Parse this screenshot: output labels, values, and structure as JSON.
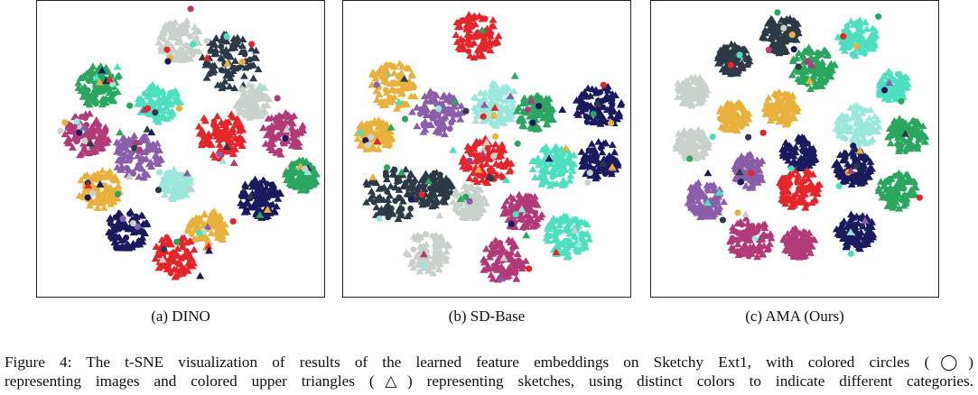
{
  "panels": [
    {
      "id": "a",
      "caption": "(a) DINO"
    },
    {
      "id": "b",
      "caption": "(b) SD-Base"
    },
    {
      "id": "c",
      "caption": "(c) AMA (Ours)"
    }
  ],
  "figure_caption": {
    "line1": "Figure 4: The t-SNE visualization of results of the learned feature embeddings on Sketchy Ext1, with colored circles (◯)",
    "line2": "representing images and colored upper triangles (△) representing sketches, using distinct colors to indicate different categories."
  },
  "colors": {
    "navy": "#1b1a5e",
    "dark": "#2c3a47",
    "red": "#e4262c",
    "teal": "#4de0c0",
    "lightteal": "#9ae8dc",
    "green": "#2aa660",
    "purple": "#8a5ea8",
    "magenta": "#b23a78",
    "gold": "#e8b13c",
    "gray": "#c9d1cb"
  },
  "chart_data": [
    {
      "type": "scatter",
      "title": "(a) DINO",
      "clusters": [
        {
          "color": "gray",
          "cx": 160,
          "cy": 45,
          "r": 25
        },
        {
          "color": "dark",
          "cx": 215,
          "cy": 68,
          "r": 33
        },
        {
          "color": "green",
          "cx": 70,
          "cy": 95,
          "r": 25
        },
        {
          "color": "teal",
          "cx": 136,
          "cy": 115,
          "r": 24
        },
        {
          "color": "magenta",
          "cx": 55,
          "cy": 150,
          "r": 26
        },
        {
          "color": "purple",
          "cx": 112,
          "cy": 172,
          "r": 28
        },
        {
          "color": "red",
          "cx": 205,
          "cy": 150,
          "r": 28
        },
        {
          "color": "magenta",
          "cx": 275,
          "cy": 148,
          "r": 25
        },
        {
          "color": "gray",
          "cx": 240,
          "cy": 112,
          "r": 20
        },
        {
          "color": "lightteal",
          "cx": 155,
          "cy": 205,
          "r": 18
        },
        {
          "color": "gold",
          "cx": 70,
          "cy": 210,
          "r": 24
        },
        {
          "color": "green",
          "cx": 295,
          "cy": 195,
          "r": 18
        },
        {
          "color": "navy",
          "cx": 248,
          "cy": 220,
          "r": 24
        },
        {
          "color": "gold",
          "cx": 190,
          "cy": 255,
          "r": 22
        },
        {
          "color": "navy",
          "cx": 100,
          "cy": 255,
          "r": 24
        },
        {
          "color": "red",
          "cx": 155,
          "cy": 285,
          "r": 25
        }
      ]
    },
    {
      "type": "scatter",
      "title": "(b) SD-Base",
      "clusters": [
        {
          "color": "red",
          "cx": 148,
          "cy": 38,
          "r": 27
        },
        {
          "color": "gold",
          "cx": 55,
          "cy": 95,
          "r": 28
        },
        {
          "color": "purple",
          "cx": 105,
          "cy": 125,
          "r": 28
        },
        {
          "color": "lightteal",
          "cx": 170,
          "cy": 115,
          "r": 26
        },
        {
          "color": "green",
          "cx": 215,
          "cy": 125,
          "r": 22
        },
        {
          "color": "navy",
          "cx": 285,
          "cy": 118,
          "r": 26
        },
        {
          "color": "gold",
          "cx": 35,
          "cy": 150,
          "r": 20
        },
        {
          "color": "red",
          "cx": 160,
          "cy": 180,
          "r": 28
        },
        {
          "color": "teal",
          "cx": 235,
          "cy": 185,
          "r": 25
        },
        {
          "color": "navy",
          "cx": 285,
          "cy": 178,
          "r": 22
        },
        {
          "color": "dark",
          "cx": 55,
          "cy": 215,
          "r": 32
        },
        {
          "color": "dark",
          "cx": 100,
          "cy": 210,
          "r": 22
        },
        {
          "color": "gray",
          "cx": 140,
          "cy": 225,
          "r": 20
        },
        {
          "color": "magenta",
          "cx": 200,
          "cy": 235,
          "r": 22
        },
        {
          "color": "teal",
          "cx": 250,
          "cy": 262,
          "r": 26
        },
        {
          "color": "gray",
          "cx": 95,
          "cy": 280,
          "r": 26
        },
        {
          "color": "magenta",
          "cx": 180,
          "cy": 290,
          "r": 26
        }
      ]
    },
    {
      "type": "scatter",
      "title": "(c) AMA (Ours)",
      "clusters": [
        {
          "color": "dark",
          "cx": 145,
          "cy": 38,
          "r": 22
        },
        {
          "color": "teal",
          "cx": 230,
          "cy": 42,
          "r": 22
        },
        {
          "color": "dark",
          "cx": 92,
          "cy": 65,
          "r": 18
        },
        {
          "color": "green",
          "cx": 180,
          "cy": 75,
          "r": 25
        },
        {
          "color": "gray",
          "cx": 45,
          "cy": 100,
          "r": 18
        },
        {
          "color": "teal",
          "cx": 270,
          "cy": 95,
          "r": 18
        },
        {
          "color": "lightteal",
          "cx": 230,
          "cy": 140,
          "r": 24
        },
        {
          "color": "gold",
          "cx": 92,
          "cy": 130,
          "r": 18
        },
        {
          "color": "gold",
          "cx": 145,
          "cy": 120,
          "r": 20
        },
        {
          "color": "green",
          "cx": 285,
          "cy": 150,
          "r": 22
        },
        {
          "color": "gray",
          "cx": 45,
          "cy": 160,
          "r": 20
        },
        {
          "color": "navy",
          "cx": 165,
          "cy": 170,
          "r": 20
        },
        {
          "color": "navy",
          "cx": 225,
          "cy": 185,
          "r": 22
        },
        {
          "color": "purple",
          "cx": 110,
          "cy": 190,
          "r": 20
        },
        {
          "color": "red",
          "cx": 165,
          "cy": 210,
          "r": 24
        },
        {
          "color": "green",
          "cx": 275,
          "cy": 212,
          "r": 22
        },
        {
          "color": "purple",
          "cx": 60,
          "cy": 222,
          "r": 22
        },
        {
          "color": "magenta",
          "cx": 110,
          "cy": 265,
          "r": 24
        },
        {
          "color": "magenta",
          "cx": 165,
          "cy": 270,
          "r": 18
        },
        {
          "color": "navy",
          "cx": 228,
          "cy": 258,
          "r": 22
        }
      ]
    }
  ]
}
